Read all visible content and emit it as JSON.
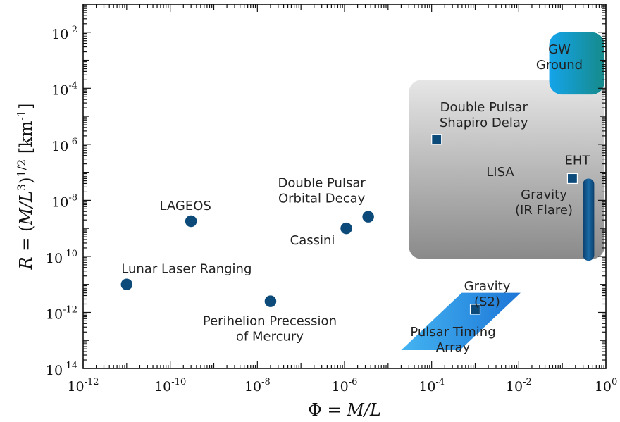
{
  "chart_data": {
    "type": "scatter",
    "title": "",
    "xlabel": {
      "prefix": "Φ = ",
      "italic": "M/L"
    },
    "ylabel": {
      "italic1": "R",
      "mid": " = (",
      "italic2": "M/L",
      "sup1": "3",
      "close": ")",
      "sup2": "1/2",
      "unit": " [km",
      "unitsup": "-1",
      "end": "]"
    },
    "x_scale": "log",
    "y_scale": "log",
    "xlim": [
      1e-12,
      1
    ],
    "ylim": [
      1e-14,
      0.1
    ],
    "grid": false,
    "legend": "none",
    "x_ticks": [
      {
        "base": "10",
        "exp": "-12",
        "value": 1e-12
      },
      {
        "base": "10",
        "exp": "-10",
        "value": 1e-10
      },
      {
        "base": "10",
        "exp": "-8",
        "value": 1e-08
      },
      {
        "base": "10",
        "exp": "-6",
        "value": 1e-06
      },
      {
        "base": "10",
        "exp": "-4",
        "value": 0.0001
      },
      {
        "base": "10",
        "exp": "-2",
        "value": 0.01
      },
      {
        "base": "10",
        "exp": "0",
        "value": 1
      }
    ],
    "y_ticks": [
      {
        "base": "10",
        "exp": "-14",
        "value": 1e-14
      },
      {
        "base": "10",
        "exp": "-12",
        "value": 1e-12
      },
      {
        "base": "10",
        "exp": "-10",
        "value": 1e-10
      },
      {
        "base": "10",
        "exp": "-8",
        "value": 1e-08
      },
      {
        "base": "10",
        "exp": "-6",
        "value": 1e-06
      },
      {
        "base": "10",
        "exp": "-4",
        "value": 0.0001
      },
      {
        "base": "10",
        "exp": "-2",
        "value": 0.01
      }
    ],
    "points": [
      {
        "id": "lunar-laser-ranging",
        "label": [
          "Lunar Laser Ranging"
        ],
        "x": 1e-11,
        "y": 1e-11,
        "marker": "circle"
      },
      {
        "id": "lageos",
        "label": [
          "LAGEOS"
        ],
        "x": 3e-10,
        "y": 1.8e-09,
        "marker": "circle"
      },
      {
        "id": "perihelion-precession",
        "label": [
          "Perihelion Precession",
          "of Mercury"
        ],
        "x": 2e-08,
        "y": 2.5e-12,
        "marker": "circle"
      },
      {
        "id": "cassini",
        "label": [
          "Cassini"
        ],
        "x": 1.1e-06,
        "y": 1e-09,
        "marker": "circle"
      },
      {
        "id": "double-pulsar-orbital-decay",
        "label": [
          "Double Pulsar",
          "Orbital Decay"
        ],
        "x": 3.5e-06,
        "y": 2.6e-09,
        "marker": "circle"
      },
      {
        "id": "double-pulsar-shapiro-delay",
        "label": [
          "Double Pulsar",
          "Shapiro Delay"
        ],
        "x": 0.00013,
        "y": 1.5e-06,
        "marker": "square"
      },
      {
        "id": "eht",
        "label": [
          "EHT"
        ],
        "x": 0.17,
        "y": 6e-08,
        "marker": "square"
      },
      {
        "id": "gravity-s2",
        "label": [
          "Gravity",
          "(S2)"
        ],
        "x": 0.001,
        "y": 1.3e-12,
        "marker": "square"
      }
    ],
    "regions": [
      {
        "id": "lisa",
        "label": [
          "LISA"
        ],
        "type": "rounded-rect",
        "x_range": [
          3e-05,
          1
        ],
        "y_range": [
          8e-11,
          0.0002
        ],
        "color": "#a8a8a8"
      },
      {
        "id": "gw-ground",
        "label": [
          "GW",
          "Ground"
        ],
        "type": "rounded-rect",
        "x_range": [
          0.05,
          1
        ],
        "y_range": [
          6e-05,
          0.01
        ],
        "color": "#1aa6e0"
      },
      {
        "id": "pulsar-timing-array",
        "label": [
          "Pulsar Timing",
          "Array"
        ],
        "type": "parallelogram",
        "x_range": [
          2e-05,
          0.011
        ],
        "y_range": [
          4.5e-14,
          5e-12
        ],
        "color": "#2196e3"
      },
      {
        "id": "gravity-ir-flare",
        "label": [
          "Gravity",
          "(IR Flare)"
        ],
        "type": "vertical-bar",
        "x": 0.4,
        "y_range": [
          7e-11,
          6e-08
        ],
        "color": "#0d4f80"
      }
    ],
    "colors": {
      "marker": "#0c4a7a",
      "marker_edge": "#ffffff",
      "axis": "#111111",
      "lisa_light": "#dcdcdc",
      "lisa_dark": "#8a8a8a",
      "gw_light": "#14a4ea",
      "gw_dark": "#168a8a",
      "pta_light": "#3fb0f0",
      "pta_dark": "#1e78d8",
      "bar": "#0b4a7c"
    }
  }
}
